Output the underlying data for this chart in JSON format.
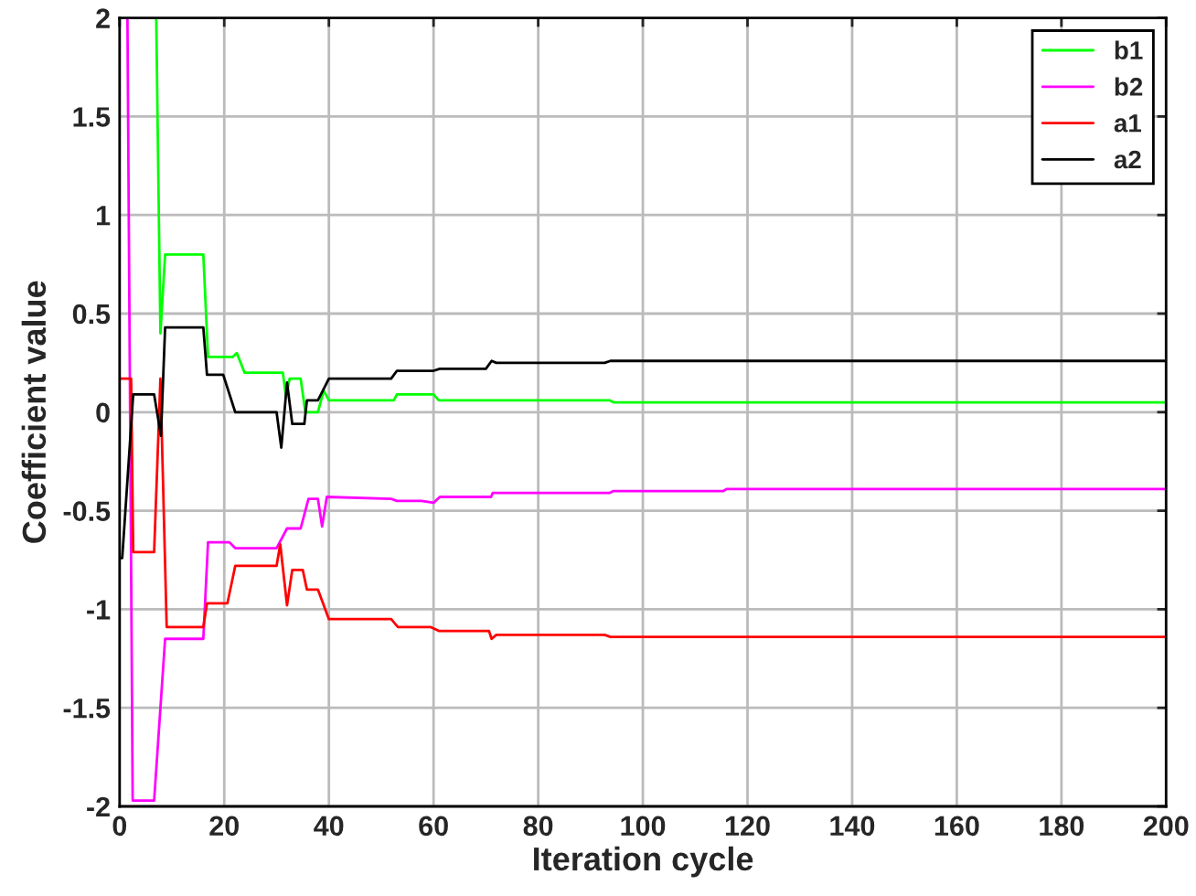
{
  "chart_data": {
    "type": "line",
    "xlabel": "Iteration cycle",
    "ylabel": "Coefficient value",
    "xlim": [
      0,
      200
    ],
    "ylim": [
      -2,
      2
    ],
    "xticks": [
      0,
      20,
      40,
      60,
      80,
      100,
      120,
      140,
      160,
      180,
      200
    ],
    "yticks": [
      -2,
      -1.5,
      -1,
      -0.5,
      0,
      0.5,
      1,
      1.5,
      2
    ],
    "grid": true,
    "legend": "top right",
    "series": [
      {
        "name": "b1",
        "color": "#00ff00",
        "x": [
          0,
          7,
          7.8,
          8.7,
          16,
          16.9,
          21.6,
          22.4,
          23.9,
          31.2,
          31.8,
          32.5,
          34.6,
          35.5,
          37.9,
          39,
          40,
          52.4,
          53,
          60,
          61,
          93.6,
          94.4,
          200
        ],
        "values": [
          2,
          2,
          0.4,
          0.8,
          0.8,
          0.28,
          0.28,
          0.3,
          0.2,
          0.2,
          0.08,
          0.17,
          0.17,
          0.0,
          0.0,
          0.11,
          0.06,
          0.06,
          0.09,
          0.09,
          0.06,
          0.06,
          0.05,
          0.05
        ]
      },
      {
        "name": "b2",
        "color": "#ff00ff",
        "x": [
          0,
          1.5,
          2.5,
          6.6,
          8.7,
          16,
          16.9,
          21,
          22.1,
          30,
          32,
          34.6,
          36.1,
          37.9,
          38.7,
          39.6,
          51.9,
          53,
          57.7,
          60,
          61.2,
          71,
          71.3,
          93.6,
          94.4,
          115.4,
          116,
          200
        ],
        "values": [
          2,
          2,
          -1.97,
          -1.97,
          -1.15,
          -1.15,
          -0.66,
          -0.66,
          -0.69,
          -0.69,
          -0.59,
          -0.59,
          -0.44,
          -0.44,
          -0.58,
          -0.43,
          -0.44,
          -0.45,
          -0.45,
          -0.46,
          -0.43,
          -0.43,
          -0.41,
          -0.41,
          -0.4,
          -0.4,
          -0.39,
          -0.39
        ]
      },
      {
        "name": "a1",
        "color": "#ff0000",
        "x": [
          0,
          2.2,
          2.6,
          6.6,
          7.8,
          9,
          16,
          16.7,
          20.6,
          22.1,
          30,
          30.7,
          32,
          33,
          35,
          35.8,
          37.9,
          40,
          51.9,
          53.2,
          59.4,
          61,
          70.6,
          71.1,
          72,
          92.7,
          93.8,
          200
        ],
        "values": [
          0.17,
          0.17,
          -0.71,
          -0.71,
          0.17,
          -1.09,
          -1.09,
          -0.97,
          -0.97,
          -0.78,
          -0.78,
          -0.67,
          -0.98,
          -0.8,
          -0.8,
          -0.9,
          -0.9,
          -1.05,
          -1.05,
          -1.09,
          -1.09,
          -1.11,
          -1.11,
          -1.15,
          -1.13,
          -1.13,
          -1.14,
          -1.14
        ]
      },
      {
        "name": "a2",
        "color": "#000000",
        "x": [
          0,
          0.5,
          2.6,
          6.6,
          7.9,
          8.7,
          16,
          16.7,
          19.8,
          22.1,
          30,
          30.9,
          32,
          33,
          35.3,
          35.8,
          37.9,
          40,
          51.9,
          53,
          60,
          61.2,
          70,
          71.1,
          72,
          92.7,
          93.8,
          200
        ],
        "values": [
          -0.74,
          -0.74,
          0.09,
          0.09,
          -0.12,
          0.43,
          0.43,
          0.19,
          0.19,
          0.0,
          0.0,
          -0.18,
          0.15,
          -0.06,
          -0.06,
          0.06,
          0.06,
          0.17,
          0.17,
          0.21,
          0.21,
          0.22,
          0.22,
          0.26,
          0.25,
          0.25,
          0.26,
          0.26
        ]
      }
    ]
  }
}
